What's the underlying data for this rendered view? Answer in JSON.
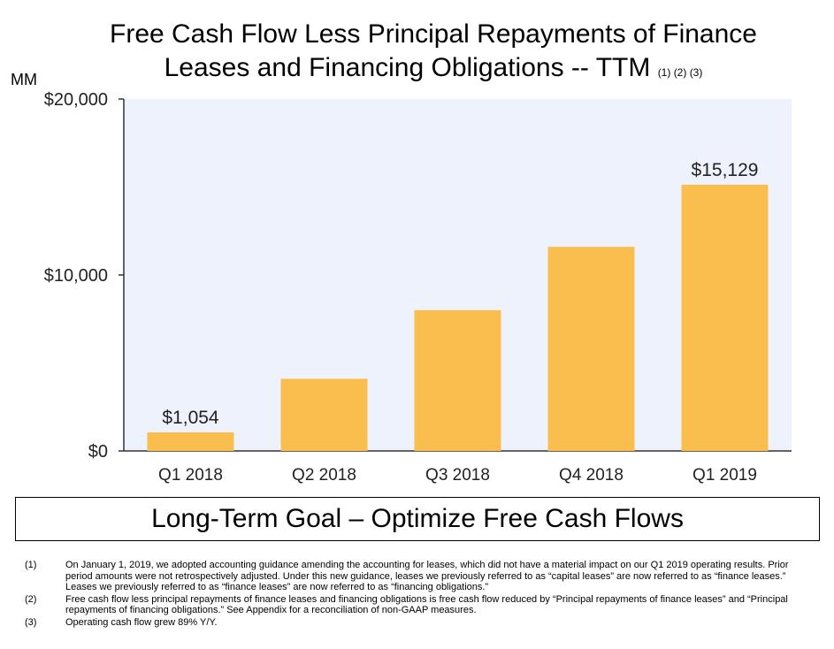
{
  "title": {
    "text": "Free Cash Flow Less Principal Repayments of Finance Leases and Financing Obligations -- TTM",
    "line1": "Free Cash Flow Less Principal Repayments of Finance",
    "line2": "Leases and Financing Obligations -- TTM",
    "notes": "(1) (2) (3)"
  },
  "unit_label": "MM",
  "chart_data": {
    "type": "bar",
    "categories": [
      "Q1 2018",
      "Q2 2018",
      "Q3 2018",
      "Q4 2018",
      "Q1 2019"
    ],
    "values": [
      1054,
      4100,
      8000,
      11600,
      15129
    ],
    "data_labels": [
      "$1,054",
      "",
      "",
      "",
      "$15,129"
    ],
    "ylim": [
      0,
      20000
    ],
    "yticks": [
      0,
      10000,
      20000
    ],
    "ytick_labels": [
      "$0",
      "$10,000",
      "$20,000"
    ],
    "bar_color": "#F9BE4E",
    "plot_background": "#EEF2FC",
    "grid": false,
    "legend": "none"
  },
  "goal": "Long-Term Goal – Optimize Free Cash Flows",
  "footnotes": [
    {
      "num": "(1)",
      "text": "On January 1, 2019, we adopted accounting guidance amending the accounting for leases, which did not have a material impact on our Q1 2019 operating results. Prior period amounts were not retrospectively adjusted. Under this new guidance, leases we previously referred to as “capital leases” are now referred to as “finance leases.” Leases we previously referred to as “finance leases” are now referred to as “financing obligations.”"
    },
    {
      "num": "(2)",
      "text": "Free cash flow less principal repayments of finance leases and financing obligations is free cash flow reduced by “Principal repayments of finance leases” and “Principal repayments of financing obligations.” See Appendix for a reconciliation of non-GAAP measures."
    },
    {
      "num": "(3)",
      "text": "Operating cash flow grew 89% Y/Y."
    }
  ]
}
